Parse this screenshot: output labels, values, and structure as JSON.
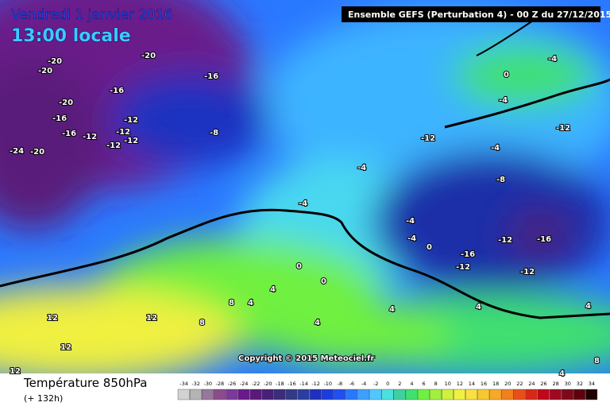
{
  "header": {
    "date": "Vendredi 1 janvier 2016",
    "time": "13:00 locale",
    "run": "Ensemble GEFS  (Perturbation 4)  -  00 Z du 27/12/2015"
  },
  "copyright": "Copyright © 2015 Meteociel.fr",
  "footer": {
    "title": "Température 850hPa",
    "lead": "(+ 132h)"
  },
  "scale": {
    "values": [
      -34,
      -32,
      -30,
      -28,
      -26,
      -24,
      -22,
      -20,
      -18,
      -16,
      -14,
      -12,
      -10,
      -8,
      -6,
      -4,
      -2,
      0,
      2,
      4,
      6,
      8,
      10,
      12,
      14,
      16,
      18,
      20,
      22,
      24,
      26,
      28,
      30,
      32,
      34
    ],
    "colors": [
      "#d2d2d2",
      "#b4b4b4",
      "#96789a",
      "#8c4c8c",
      "#7a3a9a",
      "#6a1a8a",
      "#5a1a7a",
      "#48207a",
      "#3c2c7a",
      "#333a86",
      "#2a3ea0",
      "#1e30c0",
      "#1c3ce0",
      "#2050f0",
      "#2878ff",
      "#3ca0ff",
      "#50c8ff",
      "#4ae0e0",
      "#40d0a0",
      "#40e070",
      "#70f040",
      "#a0f040",
      "#d0f040",
      "#f0f040",
      "#f8e040",
      "#f8c830",
      "#f8a828",
      "#f08020",
      "#e85018",
      "#d82818",
      "#c00818",
      "#a00820",
      "#800818",
      "#600010",
      "#200000"
    ]
  },
  "map_labels": [
    -20,
    -20,
    -20,
    -16,
    -16,
    -20,
    -16,
    -12,
    -16,
    -12,
    -12,
    -12,
    -12,
    -24,
    -20,
    -8,
    -4,
    0,
    -4,
    -12,
    -12,
    -4,
    -4,
    -8,
    -4,
    -4,
    -4,
    0,
    -12,
    -16,
    -16,
    -12,
    -12,
    0,
    0,
    8,
    4,
    4,
    8,
    4,
    4,
    4,
    4,
    12,
    12,
    12,
    12,
    4,
    8
  ]
}
